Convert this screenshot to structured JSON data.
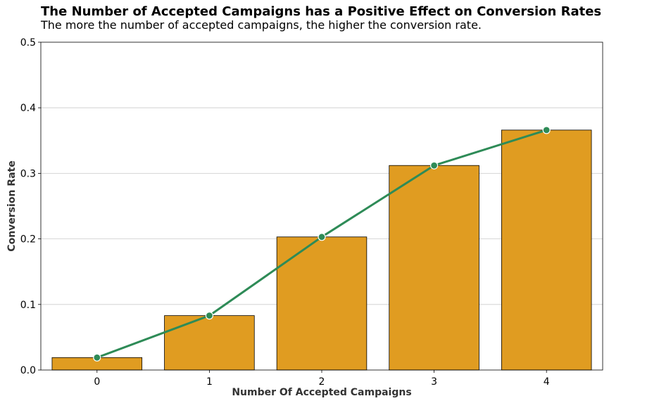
{
  "chart_data": {
    "type": "bar",
    "title": "The Number of Accepted Campaigns has a Positive Effect on Conversion Rates",
    "subtitle": "The more the number of accepted campaigns, the higher the conversion rate.",
    "xlabel": "Number Of Accepted Campaigns",
    "ylabel": "Conversion Rate",
    "categories": [
      "0",
      "1",
      "2",
      "3",
      "4"
    ],
    "series": [
      {
        "type": "bar",
        "values": [
          0.019,
          0.083,
          0.203,
          0.312,
          0.366
        ]
      },
      {
        "type": "line",
        "values": [
          0.019,
          0.083,
          0.203,
          0.312,
          0.366
        ]
      }
    ],
    "ylim": [
      0,
      0.5
    ],
    "yticks": [
      "0.0",
      "0.1",
      "0.2",
      "0.3",
      "0.4",
      "0.5"
    ],
    "grid": "horizontal",
    "legend": "none",
    "colors": {
      "bar_fill": "#E09C21",
      "bar_edge": "#000000",
      "line": "#2E8B57",
      "marker_edge": "#ffffff",
      "grid": "#cccccc",
      "title": "#000000",
      "axis_label": "#333333"
    }
  }
}
